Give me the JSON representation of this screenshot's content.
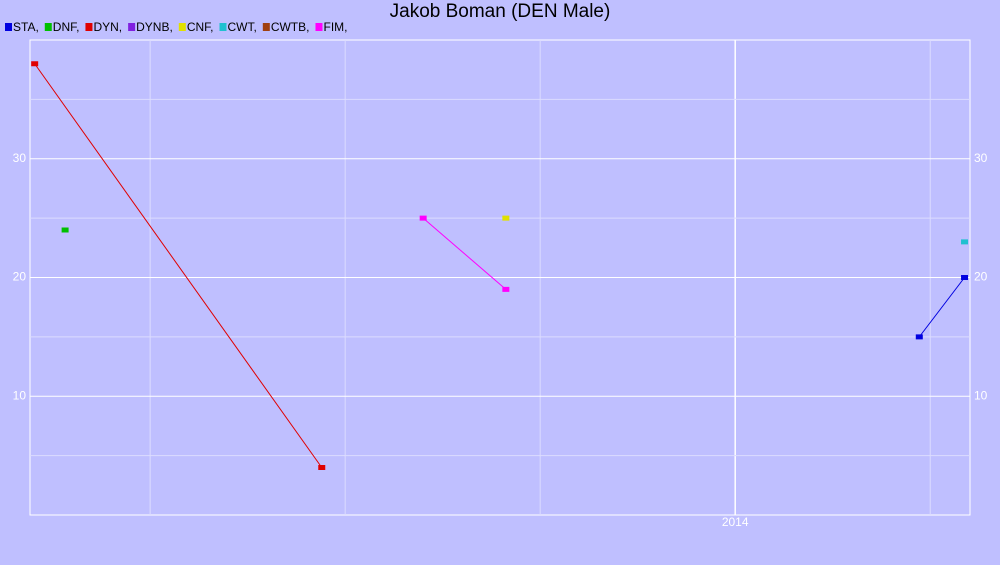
{
  "chart_data": {
    "type": "line",
    "title": "Jakob Boman (DEN Male)",
    "background": "#bfbfff",
    "xlim": [
      2013.096,
      2014.301
    ],
    "xticks": [
      {
        "value": 2013.25,
        "label": null
      },
      {
        "value": 2013.5,
        "label": null
      },
      {
        "value": 2013.75,
        "label": null
      },
      2014,
      {
        "value": 2014.25,
        "label": null
      }
    ],
    "ylim": [
      0,
      40
    ],
    "yticks": [
      {
        "value": 5,
        "label": null
      },
      10,
      {
        "value": 15,
        "label": null
      },
      20,
      {
        "value": 25,
        "label": null
      },
      30,
      {
        "value": 35,
        "label": null
      }
    ],
    "grid": true,
    "legend": "top-left",
    "series": [
      {
        "name": "STA,",
        "color": "#0000e0",
        "x": [
          2014.236,
          2014.294
        ],
        "values": [
          15,
          20
        ]
      },
      {
        "name": "DNF,",
        "color": "#00c000",
        "x": [
          2013.141
        ],
        "values": [
          24
        ]
      },
      {
        "name": "DYN,",
        "color": "#e00000",
        "x": [
          2013.102,
          2013.47
        ],
        "values": [
          38,
          4
        ]
      },
      {
        "name": "DYNB,",
        "color": "#8020e0",
        "x": [],
        "values": []
      },
      {
        "name": "CNF,",
        "color": "#e0e000",
        "x": [
          2013.706
        ],
        "values": [
          25
        ]
      },
      {
        "name": "CWT,",
        "color": "#20c0d0",
        "x": [
          2014.294
        ],
        "values": [
          23
        ]
      },
      {
        "name": "CWTB,",
        "color": "#a04010",
        "x": [],
        "values": []
      },
      {
        "name": "FIM,",
        "color": "#ff00ff",
        "x": [
          2013.6,
          2013.706
        ],
        "values": [
          25,
          19
        ]
      }
    ]
  }
}
